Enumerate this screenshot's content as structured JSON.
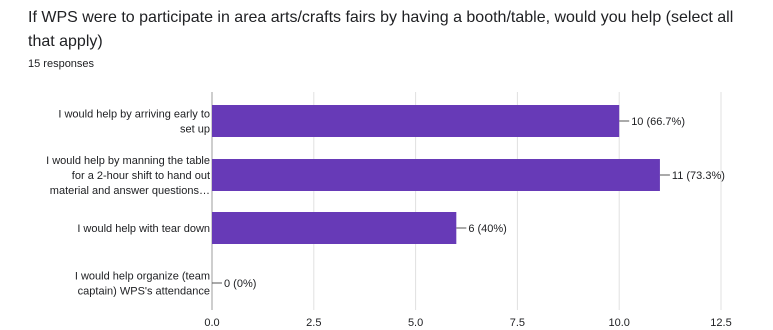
{
  "question": "If WPS were to participate in area arts/crafts fairs by having a booth/table, would you help (select all that apply)",
  "responses": "15 responses",
  "colors": {
    "bar": "#673ab7",
    "axis": "#9e9e9e",
    "grid": "#e0e0e0"
  },
  "chart_data": {
    "type": "bar",
    "orientation": "horizontal",
    "categories": [
      [
        "I would help by arriving early to",
        "set up"
      ],
      [
        "I would help by manning the table",
        "for a 2-hour shift to hand out",
        "material and answer questions…"
      ],
      [
        "I would help with tear down"
      ],
      [
        "I would help organize (team",
        "captain) WPS's attendance"
      ]
    ],
    "values": [
      10,
      11,
      6,
      0
    ],
    "data_labels": [
      "10 (66.7%)",
      "11 (73.3%)",
      "6 (40%)",
      "0 (0%)"
    ],
    "xlim": [
      0,
      12.5
    ],
    "ticks": [
      "0.0",
      "2.5",
      "5.0",
      "7.5",
      "10.0",
      "12.5"
    ],
    "tick_values": [
      0,
      2.5,
      5,
      7.5,
      10,
      12.5
    ]
  }
}
